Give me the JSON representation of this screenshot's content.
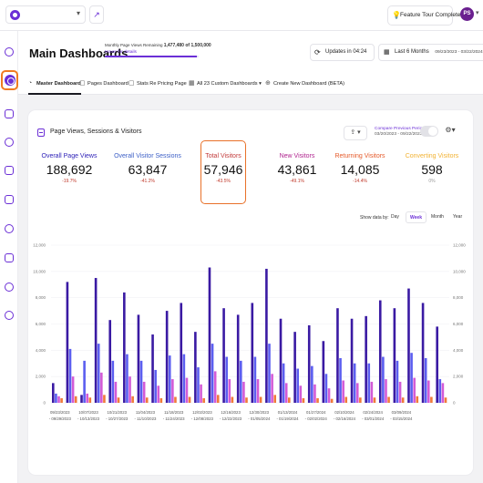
{
  "topbar": {
    "tour_label": "Feature Tour Completed!",
    "avatar_initials": "PS"
  },
  "header": {
    "title": "Main Dashboards",
    "pv_remaining_label": "Monthly Page Views Remaining",
    "pv_remaining_value": "1,477,480 of 1,500,000",
    "pv_hover": "Hover for details",
    "pv_progress": 0.985,
    "updates_label": "Updates in 04:24",
    "range_label": "Last 6 Months",
    "range_dates": "09/23/2023 - 03/22/2024"
  },
  "tabs": [
    {
      "label": "Master Dashboard",
      "active": true
    },
    {
      "label": "Pages Dashboard",
      "active": false
    },
    {
      "label": "Stats Re Pricing Page",
      "active": false
    },
    {
      "label": "All 23 Custom Dashboards",
      "active": false
    },
    {
      "label": "Create New Dashboard (BETA)",
      "active": false
    }
  ],
  "card": {
    "title": "Page Views, Sessions & Visitors",
    "compare_label": "Compare Previous Period",
    "compare_dates": "03/20/2023 - 09/22/2023",
    "compare_on": false
  },
  "metrics": [
    {
      "label": "Overall Page Views",
      "value": "188,692",
      "change": "-19.7%",
      "color": "#2f22b8"
    },
    {
      "label": "Overall Visitor Sessions",
      "value": "63,847",
      "change": "-41.2%",
      "color": "#3c5fc6"
    },
    {
      "label": "Total Visitors",
      "value": "57,946",
      "change": "-43.5%",
      "color": "#c23a3a"
    },
    {
      "label": "New Visitors",
      "value": "43,861",
      "change": "-49.1%",
      "color": "#b0248f"
    },
    {
      "label": "Returning Visitors",
      "value": "14,085",
      "change": "-14.4%",
      "color": "#e55a2a"
    },
    {
      "label": "Converting Visitors",
      "value": "598",
      "change": "0%",
      "color": "#f2b233"
    }
  ],
  "show_data_by": {
    "label": "Show data by:",
    "options": [
      "Day",
      "Week",
      "Month",
      "Year"
    ],
    "selected": "Week"
  },
  "chart_data": {
    "type": "bar",
    "ylim": [
      0,
      12000
    ],
    "yticks": [
      "0",
      "2,000",
      "4,000",
      "6,000",
      "8,000",
      "10,000",
      "12,000"
    ],
    "x_labels": [
      [
        "09/23/2023",
        "- 09/29/2023"
      ],
      [
        "10/07/2023",
        "- 10/13/2023"
      ],
      [
        "10/21/2023",
        "- 10/27/2023"
      ],
      [
        "11/04/2023",
        "- 11/10/2023"
      ],
      [
        "11/18/2023",
        "- 11/24/2023"
      ],
      [
        "12/02/2023",
        "- 12/08/2023"
      ],
      [
        "12/16/2023",
        "- 12/22/2023"
      ],
      [
        "12/30/2023",
        "- 01/05/2024"
      ],
      [
        "01/13/2024",
        "- 01/19/2024"
      ],
      [
        "01/27/2024",
        "- 02/02/2024"
      ],
      [
        "02/10/2024",
        "- 02/16/2024"
      ],
      [
        "02/24/2024",
        "- 03/01/2024"
      ],
      [
        "03/09/2024",
        "- 03/15/2024"
      ]
    ],
    "colors": [
      "#3a1aa3",
      "#5b5ef0",
      "#d35bd6",
      "#f07a3a"
    ],
    "series": [
      {
        "values": [
          1500,
          9200,
          600,
          9500,
          6300,
          8400,
          6700,
          5200,
          7000,
          7600,
          5400,
          10300,
          7200,
          6700,
          7600,
          10200,
          6400,
          5400,
          5900,
          4700,
          7200,
          6400,
          6600,
          7800,
          7200,
          8700,
          7600,
          5800
        ]
      },
      {
        "values": [
          700,
          4100,
          3200,
          4500,
          3200,
          3700,
          3200,
          2500,
          3600,
          3700,
          2700,
          4500,
          3500,
          3200,
          3500,
          4500,
          3000,
          2600,
          2800,
          2200,
          3400,
          3000,
          3000,
          3500,
          3200,
          3800,
          3400,
          1800
        ]
      },
      {
        "values": [
          500,
          2000,
          700,
          2300,
          1600,
          2000,
          1600,
          1300,
          1800,
          1900,
          1400,
          2400,
          1800,
          1600,
          1800,
          2200,
          1500,
          1300,
          1400,
          1100,
          1700,
          1500,
          1600,
          1800,
          1600,
          1900,
          1700,
          1500
        ]
      },
      {
        "values": [
          350,
          500,
          400,
          600,
          400,
          500,
          400,
          350,
          450,
          450,
          350,
          600,
          450,
          400,
          450,
          600,
          400,
          350,
          350,
          300,
          450,
          400,
          400,
          450,
          400,
          500,
          450,
          400
        ]
      }
    ]
  }
}
